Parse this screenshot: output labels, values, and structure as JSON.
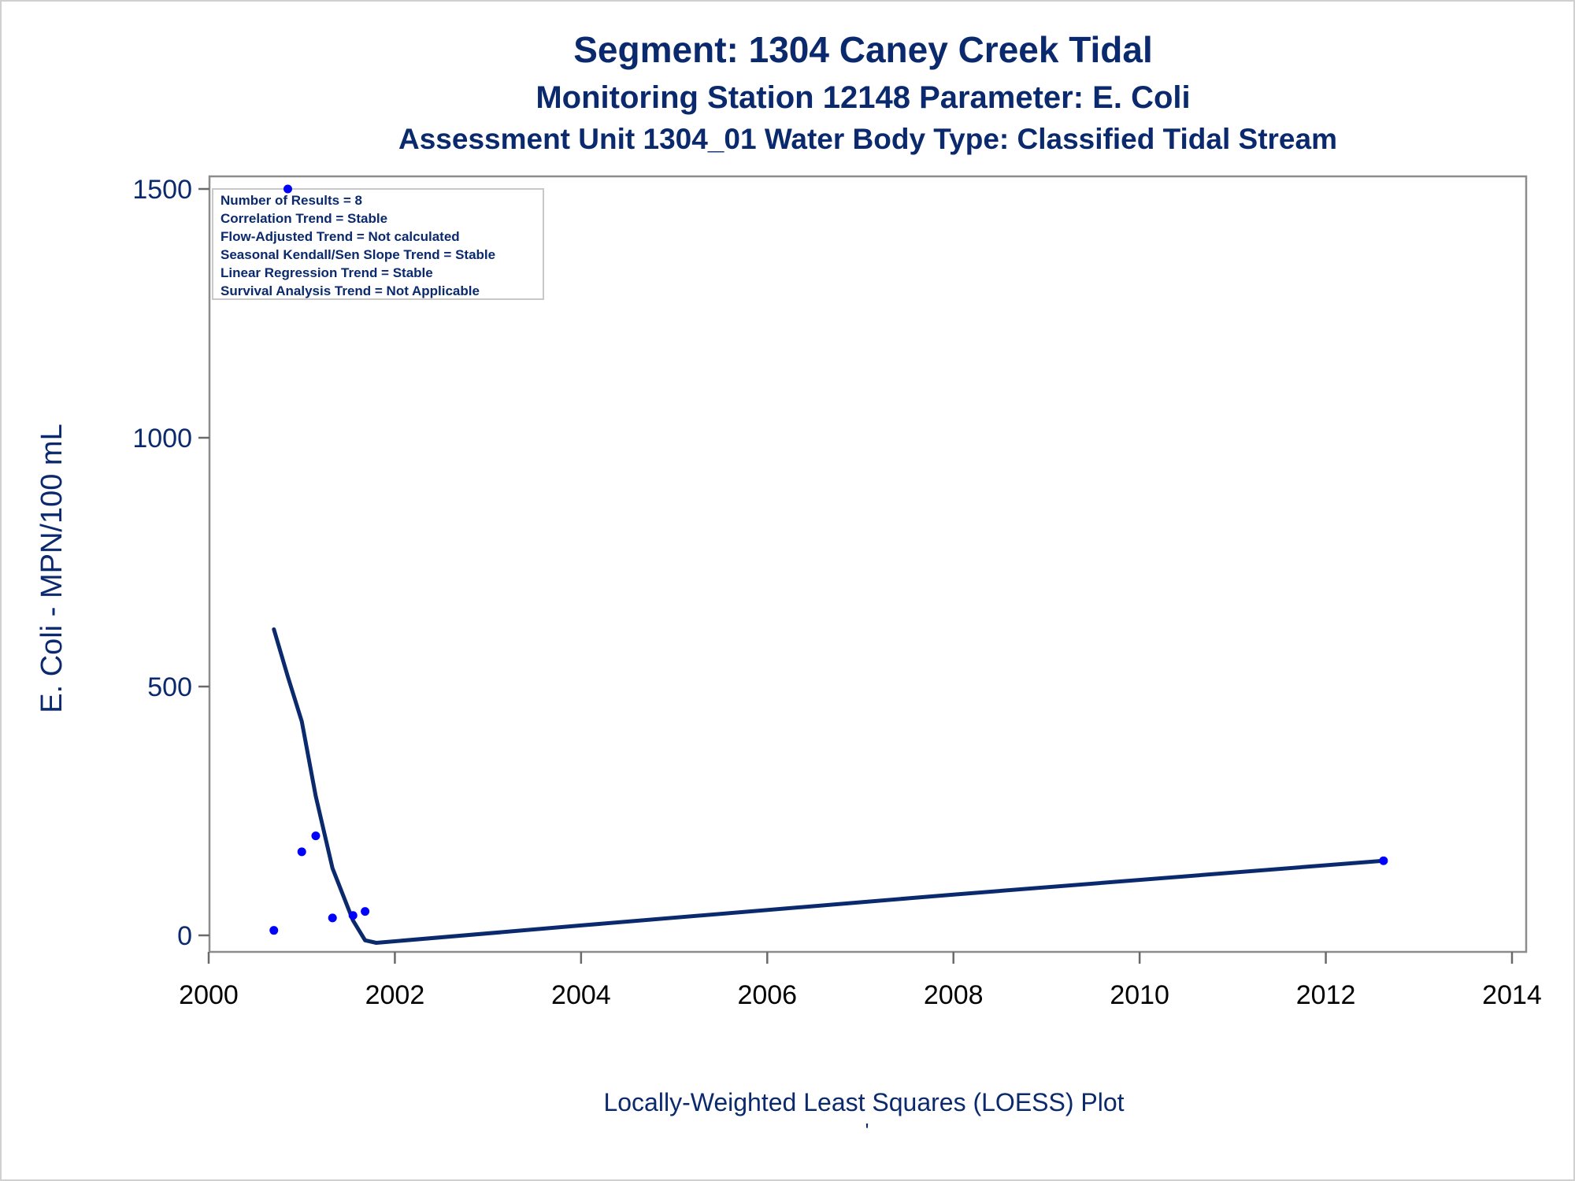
{
  "chart_data": {
    "type": "scatter",
    "title": "Segment: 1304  Caney Creek Tidal",
    "subtitle": "Monitoring Station 12148 Parameter: E. Coli",
    "subtitle2": "Assessment Unit 1304_01   Water Body Type: Classified Tidal Stream",
    "xlabel": "Locally-Weighted Least Squares (LOESS) Plot",
    "footnote": "'",
    "ylabel": "E. Coli - MPN/100 mL",
    "xlim": [
      2000,
      2014
    ],
    "ylim": [
      0,
      1500
    ],
    "x_ticks": [
      2000,
      2002,
      2004,
      2006,
      2008,
      2010,
      2012,
      2014
    ],
    "y_ticks": [
      0,
      500,
      1000,
      1500
    ],
    "grid": false,
    "legend": "none",
    "inset_box": {
      "lines": [
        "Number of Results = 8",
        "Correlation Trend = Stable",
        "Flow-Adjusted Trend = Not calculated",
        "Seasonal Kendall/Sen Slope Trend = Stable",
        "Linear Regression Trend = Stable",
        "Survival Analysis Trend = Not Applicable"
      ],
      "placement": "top-left"
    },
    "series": [
      {
        "kind": "points",
        "color": "#0000ff",
        "points": [
          {
            "x": 2000.7,
            "y": 10
          },
          {
            "x": 2000.85,
            "y": 1500
          },
          {
            "x": 2001.0,
            "y": 168
          },
          {
            "x": 2001.15,
            "y": 200
          },
          {
            "x": 2001.33,
            "y": 35
          },
          {
            "x": 2001.55,
            "y": 40
          },
          {
            "x": 2001.68,
            "y": 48
          },
          {
            "x": 2012.62,
            "y": 150
          }
        ]
      },
      {
        "kind": "loess-line",
        "color": "#0b2a6e",
        "points": [
          {
            "x": 2000.7,
            "y": 615
          },
          {
            "x": 2000.85,
            "y": 520
          },
          {
            "x": 2001.0,
            "y": 430
          },
          {
            "x": 2001.15,
            "y": 280
          },
          {
            "x": 2001.33,
            "y": 135
          },
          {
            "x": 2001.55,
            "y": 30
          },
          {
            "x": 2001.68,
            "y": -10
          },
          {
            "x": 2001.8,
            "y": -15
          },
          {
            "x": 2004.0,
            "y": 20
          },
          {
            "x": 2008.0,
            "y": 82
          },
          {
            "x": 2012.62,
            "y": 150
          }
        ]
      }
    ]
  }
}
